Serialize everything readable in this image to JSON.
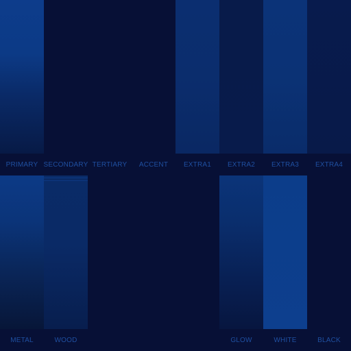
{
  "palette": {
    "top": [
      {
        "id": "primary",
        "label": "PRIMARY"
      },
      {
        "id": "secondary",
        "label": "SECONDARY"
      },
      {
        "id": "tertiary",
        "label": "TERTIARY"
      },
      {
        "id": "accent",
        "label": "ACCENT"
      },
      {
        "id": "extra1",
        "label": "EXTRA1"
      },
      {
        "id": "extra2",
        "label": "EXTRA2"
      },
      {
        "id": "extra3",
        "label": "EXTRA3"
      },
      {
        "id": "extra4",
        "label": "EXTRA4"
      }
    ],
    "bottom": [
      {
        "id": "metal",
        "label": "METAL"
      },
      {
        "id": "wood",
        "label": "WOOD"
      },
      {
        "id": "empty1",
        "label": ""
      },
      {
        "id": "empty2",
        "label": ""
      },
      {
        "id": "empty3",
        "label": ""
      },
      {
        "id": "glow",
        "label": "GLOW"
      },
      {
        "id": "white",
        "label": "WHITE"
      },
      {
        "id": "black",
        "label": "BLACK"
      }
    ]
  },
  "colors": {
    "background": "#071036",
    "label": "#1f4fa0"
  }
}
